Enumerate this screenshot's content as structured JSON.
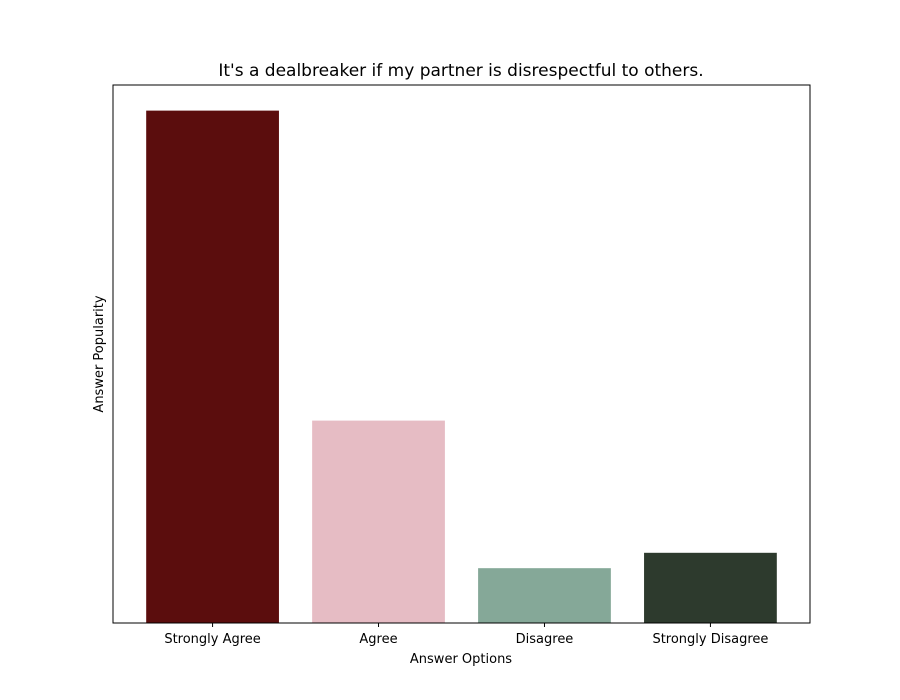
{
  "chart_data": {
    "type": "bar",
    "title": "It's a dealbreaker if my partner is disrespectful to others.",
    "xlabel": "Answer Options",
    "ylabel": "Answer Popularity",
    "categories": [
      "Strongly Agree",
      "Agree",
      "Disagree",
      "Strongly Disagree"
    ],
    "values": [
      100,
      39.5,
      10.7,
      13.7
    ],
    "colors": [
      "#5b0d0d",
      "#e6bcc4",
      "#85a898",
      "#2d3a2d"
    ],
    "ylim": [
      0,
      105
    ],
    "y_ticks_shown": false,
    "grid": false,
    "legend": "none"
  }
}
